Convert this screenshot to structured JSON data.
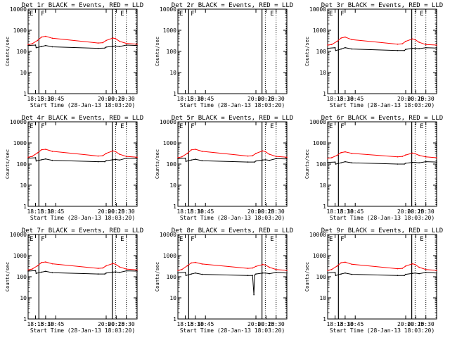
{
  "figure": {
    "ylabel": "Counts/sec",
    "xlabel": "Start Time (28-Jan-13 18:03:20)"
  },
  "chart_data": [
    {
      "type": "line",
      "title": "Det 1r BLACK = Events, RED = LLD",
      "xlabel": "Start Time (28-Jan-13 18:03:20)",
      "ylabel": "Counts/sec",
      "yscale": "log",
      "ylim": [
        1,
        10000
      ],
      "xlim": [
        "18:04",
        "20:46"
      ],
      "x_ticks": [
        "18:15",
        "18:30",
        "18:45",
        "20:00",
        "20:15",
        "20:30"
      ],
      "y_ticks": [
        "1",
        "10",
        "100",
        "1000",
        "10000"
      ],
      "markers": {
        "solid": [
          "18:20",
          "20:09"
        ],
        "dotted": [
          "20:14",
          "20:30",
          "20:45"
        ],
        "labels": [
          {
            "text": "E",
            "at": "18:05"
          },
          {
            "text": "F",
            "at": "18:22"
          },
          {
            "text": "E",
            "at": "20:20"
          }
        ]
      },
      "series": [
        {
          "name": "LLD",
          "color": "#ff0000",
          "x": [
            "18:04",
            "18:10",
            "18:18",
            "18:24",
            "18:30",
            "18:40",
            "19:48",
            "19:55",
            "20:00",
            "20:10",
            "20:14",
            "20:20",
            "20:30",
            "20:46"
          ],
          "y": [
            210,
            230,
            330,
            480,
            520,
            420,
            250,
            260,
            330,
            430,
            400,
            300,
            240,
            220
          ]
        },
        {
          "name": "Events",
          "color": "#000000",
          "x": [
            "18:04",
            "18:15",
            "18:16",
            "18:24",
            "18:30",
            "18:40",
            "19:48",
            "19:58",
            "20:00",
            "20:10",
            "20:14",
            "20:20",
            "20:30",
            "20:46"
          ],
          "y": [
            190,
            200,
            150,
            170,
            190,
            165,
            140,
            145,
            160,
            175,
            180,
            170,
            200,
            190
          ]
        }
      ]
    },
    {
      "type": "line",
      "title": "Det 2r BLACK = Events, RED = LLD",
      "xlabel": "Start Time (28-Jan-13 18:03:20)",
      "ylabel": "Counts/sec",
      "yscale": "log",
      "ylim": [
        1,
        10000
      ],
      "xlim": [
        "18:04",
        "20:46"
      ],
      "x_ticks": [
        "18:15",
        "18:30",
        "18:45",
        "20:00",
        "20:15",
        "20:30"
      ],
      "y_ticks": [
        "1",
        "10",
        "100",
        "1000",
        "10000"
      ],
      "markers": {
        "solid": [
          "18:20",
          "20:09"
        ],
        "dotted": [
          "20:14",
          "20:30",
          "20:45"
        ],
        "labels": [
          {
            "text": "E",
            "at": "18:05"
          },
          {
            "text": "F",
            "at": "18:22"
          },
          {
            "text": "E",
            "at": "20:20"
          }
        ]
      },
      "series": []
    },
    {
      "type": "line",
      "title": "Det 3r BLACK = Events, RED = LLD",
      "xlabel": "Start Time (28-Jan-13 18:03:20)",
      "ylabel": "Counts/sec",
      "yscale": "log",
      "ylim": [
        1,
        10000
      ],
      "xlim": [
        "18:04",
        "20:46"
      ],
      "x_ticks": [
        "18:15",
        "18:30",
        "18:45",
        "20:00",
        "20:15",
        "20:30"
      ],
      "y_ticks": [
        "1",
        "10",
        "100",
        "1000",
        "10000"
      ],
      "markers": {
        "solid": [
          "18:20",
          "20:09"
        ],
        "dotted": [
          "20:14",
          "20:30",
          "20:45"
        ],
        "labels": [
          {
            "text": "E",
            "at": "18:05"
          },
          {
            "text": "F",
            "at": "18:22"
          },
          {
            "text": "E",
            "at": "20:20"
          }
        ]
      },
      "series": [
        {
          "name": "LLD",
          "color": "#ff0000",
          "x": [
            "18:04",
            "18:10",
            "18:18",
            "18:24",
            "18:30",
            "18:40",
            "19:48",
            "19:55",
            "20:00",
            "20:10",
            "20:14",
            "20:20",
            "20:30",
            "20:46"
          ],
          "y": [
            200,
            210,
            300,
            430,
            480,
            360,
            220,
            230,
            300,
            390,
            360,
            270,
            210,
            200
          ]
        },
        {
          "name": "Events",
          "color": "#000000",
          "x": [
            "18:04",
            "18:15",
            "18:16",
            "18:24",
            "18:30",
            "18:40",
            "19:48",
            "19:58",
            "20:00",
            "20:10",
            "20:14",
            "20:20",
            "20:30",
            "20:46"
          ],
          "y": [
            140,
            150,
            110,
            130,
            150,
            130,
            110,
            110,
            125,
            140,
            140,
            135,
            150,
            145
          ]
        }
      ]
    },
    {
      "type": "line",
      "title": "Det 4r BLACK = Events, RED = LLD",
      "xlabel": "Start Time (28-Jan-13 18:03:20)",
      "ylabel": "Counts/sec",
      "yscale": "log",
      "ylim": [
        1,
        10000
      ],
      "xlim": [
        "18:04",
        "20:46"
      ],
      "x_ticks": [
        "18:15",
        "18:30",
        "18:45",
        "20:00",
        "20:15",
        "20:30"
      ],
      "y_ticks": [
        "1",
        "10",
        "100",
        "1000",
        "10000"
      ],
      "markers": {
        "solid": [
          "18:20",
          "20:09"
        ],
        "dotted": [
          "20:14",
          "20:30",
          "20:45"
        ],
        "labels": [
          {
            "text": "E",
            "at": "18:05"
          },
          {
            "text": "F",
            "at": "18:22"
          },
          {
            "text": "E",
            "at": "20:20"
          }
        ]
      },
      "series": [
        {
          "name": "LLD",
          "color": "#ff0000",
          "x": [
            "18:04",
            "18:10",
            "18:18",
            "18:24",
            "18:30",
            "18:40",
            "19:48",
            "19:55",
            "20:00",
            "20:10",
            "20:14",
            "20:20",
            "20:30",
            "20:46"
          ],
          "y": [
            210,
            230,
            340,
            480,
            500,
            400,
            240,
            250,
            320,
            420,
            390,
            290,
            230,
            210
          ]
        },
        {
          "name": "Events",
          "color": "#000000",
          "x": [
            "18:04",
            "18:15",
            "18:16",
            "18:24",
            "18:30",
            "18:40",
            "19:48",
            "19:58",
            "20:00",
            "20:10",
            "20:14",
            "20:20",
            "20:30",
            "20:46"
          ],
          "y": [
            190,
            200,
            140,
            160,
            175,
            150,
            130,
            130,
            145,
            160,
            165,
            155,
            190,
            185
          ]
        }
      ]
    },
    {
      "type": "line",
      "title": "Det 5r BLACK = Events, RED = LLD",
      "xlabel": "Start Time (28-Jan-13 18:03:20)",
      "ylabel": "Counts/sec",
      "yscale": "log",
      "ylim": [
        1,
        10000
      ],
      "xlim": [
        "18:04",
        "20:46"
      ],
      "x_ticks": [
        "18:15",
        "18:30",
        "18:45",
        "20:00",
        "20:15",
        "20:30"
      ],
      "y_ticks": [
        "1",
        "10",
        "100",
        "1000",
        "10000"
      ],
      "markers": {
        "solid": [
          "18:20",
          "20:09"
        ],
        "dotted": [
          "20:14",
          "20:30",
          "20:45"
        ],
        "labels": [
          {
            "text": "E",
            "at": "18:05"
          },
          {
            "text": "F",
            "at": "18:22"
          },
          {
            "text": "E",
            "at": "20:20"
          }
        ]
      },
      "series": [
        {
          "name": "LLD",
          "color": "#ff0000",
          "x": [
            "18:04",
            "18:10",
            "18:18",
            "18:24",
            "18:30",
            "18:40",
            "19:48",
            "19:55",
            "20:00",
            "20:10",
            "20:14",
            "20:20",
            "20:30",
            "20:46"
          ],
          "y": [
            200,
            220,
            320,
            470,
            500,
            400,
            240,
            250,
            320,
            420,
            390,
            290,
            230,
            210
          ]
        },
        {
          "name": "Events",
          "color": "#000000",
          "x": [
            "18:04",
            "18:15",
            "18:16",
            "18:24",
            "18:30",
            "18:40",
            "19:48",
            "19:58",
            "20:00",
            "20:10",
            "20:14",
            "20:20",
            "20:30",
            "20:46"
          ],
          "y": [
            180,
            190,
            135,
            155,
            170,
            145,
            125,
            125,
            140,
            155,
            160,
            150,
            180,
            175
          ]
        }
      ]
    },
    {
      "type": "line",
      "title": "Det 6r BLACK = Events, RED = LLD",
      "xlabel": "Start Time (28-Jan-13 18:03:20)",
      "ylabel": "Counts/sec",
      "yscale": "log",
      "ylim": [
        1,
        10000
      ],
      "xlim": [
        "18:04",
        "20:46"
      ],
      "x_ticks": [
        "18:15",
        "18:30",
        "18:45",
        "20:00",
        "20:15",
        "20:30"
      ],
      "y_ticks": [
        "1",
        "10",
        "100",
        "1000",
        "10000"
      ],
      "markers": {
        "solid": [
          "18:20",
          "20:09"
        ],
        "dotted": [
          "20:14",
          "20:30",
          "20:45"
        ],
        "labels": [
          {
            "text": "E",
            "at": "18:05"
          },
          {
            "text": "F",
            "at": "18:22"
          },
          {
            "text": "E",
            "at": "20:20"
          }
        ]
      },
      "series": [
        {
          "name": "LLD",
          "color": "#ff0000",
          "x": [
            "18:04",
            "18:10",
            "18:18",
            "18:24",
            "18:30",
            "18:40",
            "19:48",
            "19:55",
            "20:00",
            "20:10",
            "20:14",
            "20:20",
            "20:30",
            "20:46"
          ],
          "y": [
            190,
            200,
            260,
            350,
            380,
            320,
            220,
            230,
            270,
            330,
            310,
            260,
            220,
            200
          ]
        },
        {
          "name": "Events",
          "color": "#000000",
          "x": [
            "18:04",
            "18:15",
            "18:16",
            "18:24",
            "18:30",
            "18:40",
            "19:48",
            "19:58",
            "20:00",
            "20:10",
            "20:14",
            "20:20",
            "20:30",
            "20:46"
          ],
          "y": [
            120,
            125,
            100,
            115,
            130,
            115,
            100,
            100,
            110,
            120,
            120,
            115,
            130,
            125
          ]
        }
      ]
    },
    {
      "type": "line",
      "title": "Det 7r BLACK = Events, RED = LLD",
      "xlabel": "Start Time (28-Jan-13 18:03:20)",
      "ylabel": "Counts/sec",
      "yscale": "log",
      "ylim": [
        1,
        10000
      ],
      "xlim": [
        "18:04",
        "20:46"
      ],
      "x_ticks": [
        "18:15",
        "18:30",
        "18:45",
        "20:00",
        "20:15",
        "20:30"
      ],
      "y_ticks": [
        "1",
        "10",
        "100",
        "1000",
        "10000"
      ],
      "markers": {
        "solid": [
          "18:20",
          "20:09"
        ],
        "dotted": [
          "20:14",
          "20:30",
          "20:45"
        ],
        "labels": [
          {
            "text": "E",
            "at": "18:05"
          },
          {
            "text": "F",
            "at": "18:22"
          },
          {
            "text": "E",
            "at": "20:20"
          }
        ]
      },
      "series": [
        {
          "name": "LLD",
          "color": "#ff0000",
          "x": [
            "18:04",
            "18:10",
            "18:18",
            "18:24",
            "18:30",
            "18:40",
            "19:48",
            "19:55",
            "20:00",
            "20:10",
            "20:14",
            "20:20",
            "20:30",
            "20:46"
          ],
          "y": [
            210,
            230,
            330,
            470,
            500,
            410,
            250,
            260,
            330,
            420,
            390,
            290,
            230,
            210
          ]
        },
        {
          "name": "Events",
          "color": "#000000",
          "x": [
            "18:04",
            "18:15",
            "18:16",
            "18:24",
            "18:30",
            "18:40",
            "19:48",
            "19:58",
            "20:00",
            "20:10",
            "20:14",
            "20:20",
            "20:30",
            "20:46"
          ],
          "y": [
            185,
            195,
            145,
            165,
            180,
            155,
            135,
            135,
            150,
            165,
            170,
            160,
            190,
            185
          ]
        }
      ]
    },
    {
      "type": "line",
      "title": "Det 8r BLACK = Events, RED = LLD",
      "xlabel": "Start Time (28-Jan-13 18:03:20)",
      "ylabel": "Counts/sec",
      "yscale": "log",
      "ylim": [
        1,
        10000
      ],
      "xlim": [
        "18:04",
        "20:46"
      ],
      "x_ticks": [
        "18:15",
        "18:30",
        "18:45",
        "20:00",
        "20:15",
        "20:30"
      ],
      "y_ticks": [
        "1",
        "10",
        "100",
        "1000",
        "10000"
      ],
      "markers": {
        "solid": [
          "18:20",
          "20:09"
        ],
        "dotted": [
          "20:14",
          "20:30",
          "20:45"
        ],
        "labels": [
          {
            "text": "E",
            "at": "18:05"
          },
          {
            "text": "F",
            "at": "18:22"
          },
          {
            "text": "E",
            "at": "20:20"
          }
        ]
      },
      "series": [
        {
          "name": "LLD",
          "color": "#ff0000",
          "x": [
            "18:04",
            "18:10",
            "18:18",
            "18:24",
            "18:30",
            "18:40",
            "19:48",
            "19:55",
            "20:00",
            "20:10",
            "20:14",
            "20:20",
            "20:30",
            "20:46"
          ],
          "y": [
            200,
            220,
            330,
            450,
            480,
            400,
            250,
            260,
            310,
            380,
            360,
            280,
            220,
            200
          ]
        },
        {
          "name": "Events",
          "color": "#000000",
          "x": [
            "18:04",
            "18:15",
            "18:16",
            "18:24",
            "18:30",
            "18:40",
            "19:48",
            "19:55",
            "19:57",
            "19:58",
            "20:00",
            "20:10",
            "20:14",
            "20:20",
            "20:30",
            "20:46"
          ],
          "y": [
            150,
            160,
            115,
            135,
            150,
            130,
            115,
            115,
            14,
            120,
            135,
            150,
            150,
            140,
            160,
            150
          ]
        }
      ]
    },
    {
      "type": "line",
      "title": "Det 9r BLACK = Events, RED = LLD",
      "xlabel": "Start Time (28-Jan-13 18:03:20)",
      "ylabel": "Counts/sec",
      "yscale": "log",
      "ylim": [
        1,
        10000
      ],
      "xlim": [
        "18:04",
        "20:46"
      ],
      "x_ticks": [
        "18:15",
        "18:30",
        "18:45",
        "20:00",
        "20:15",
        "20:30"
      ],
      "y_ticks": [
        "1",
        "10",
        "100",
        "1000",
        "10000"
      ],
      "markers": {
        "solid": [
          "18:20",
          "20:09"
        ],
        "dotted": [
          "20:14",
          "20:30",
          "20:45"
        ],
        "labels": [
          {
            "text": "E",
            "at": "18:05"
          },
          {
            "text": "F",
            "at": "18:22"
          },
          {
            "text": "E",
            "at": "20:20"
          }
        ]
      },
      "series": [
        {
          "name": "LLD",
          "color": "#ff0000",
          "x": [
            "18:04",
            "18:10",
            "18:18",
            "18:24",
            "18:30",
            "18:40",
            "19:48",
            "19:55",
            "20:00",
            "20:10",
            "20:14",
            "20:20",
            "20:30",
            "20:46"
          ],
          "y": [
            200,
            220,
            320,
            460,
            490,
            390,
            240,
            250,
            320,
            410,
            380,
            280,
            220,
            200
          ]
        },
        {
          "name": "Events",
          "color": "#000000",
          "x": [
            "18:04",
            "18:15",
            "18:16",
            "18:24",
            "18:30",
            "18:40",
            "19:48",
            "19:58",
            "20:00",
            "20:10",
            "20:14",
            "20:20",
            "20:30",
            "20:46"
          ],
          "y": [
            150,
            160,
            115,
            135,
            150,
            130,
            115,
            115,
            130,
            145,
            150,
            140,
            160,
            150
          ]
        }
      ]
    }
  ]
}
